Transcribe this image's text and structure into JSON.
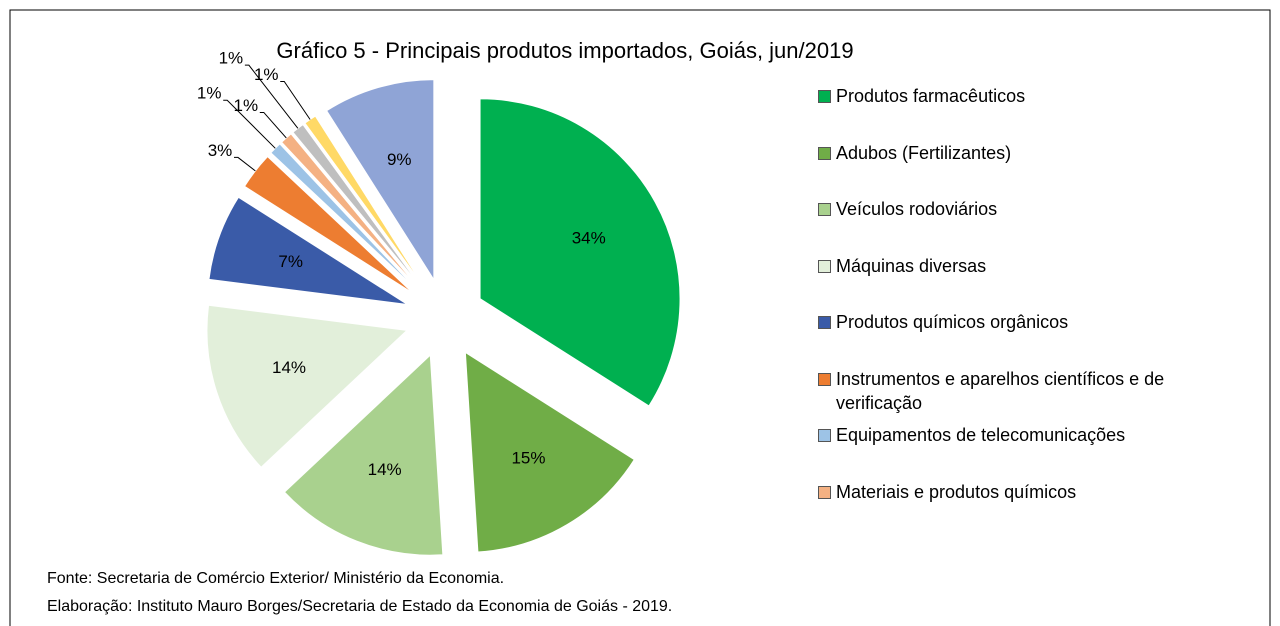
{
  "chart_data": {
    "type": "pie",
    "title": "Gráfico 5 - Principais produtos importados, Goiás, jun/2019",
    "categories": [
      "Produtos farmacêuticos",
      "Adubos (Fertilizantes)",
      "Veículos rodoviários",
      "Máquinas diversas",
      "Produtos químicos orgânicos",
      "Instrumentos e aparelhos científicos e de verificação",
      "Equipamentos de telecomunicações",
      "Materiais e produtos químicos",
      null,
      null,
      null
    ],
    "values": [
      34,
      15,
      14,
      14,
      7,
      3,
      1,
      1,
      1,
      1,
      9
    ],
    "value_labels": [
      "34%",
      "15%",
      "14%",
      "14%",
      "7%",
      "3%",
      "1%",
      "1%",
      "1%",
      "1%",
      "9%"
    ],
    "colors": [
      "#00b050",
      "#70ad47",
      "#a9d18e",
      "#e2efda",
      "#3a5ba8",
      "#ed7d31",
      "#9dc3e6",
      "#f4b183",
      "#bfbfbf",
      "#ffd966",
      "#8fa4d6"
    ],
    "legend": "right",
    "notes": [
      "Fonte: Secretaria de Comércio Exterior/ Ministério da Economia.",
      "Elaboração: Instituto Mauro Borges/Secretaria de Estado da Economia de Goiás - 2019."
    ]
  }
}
